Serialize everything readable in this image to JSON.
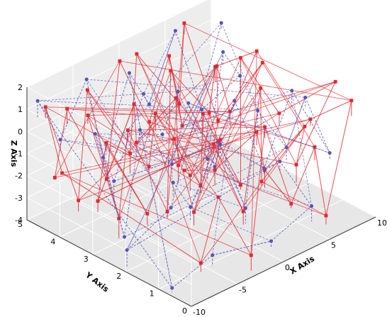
{
  "chart_data": {
    "type": "line",
    "title": "",
    "xlabel": "X Axis",
    "ylabel": "Y Axis",
    "zlabel": "Z Axis",
    "xlim": [
      -10,
      10
    ],
    "ylim": [
      0,
      5
    ],
    "zlim": [
      -4,
      2
    ],
    "x_ticks": [
      "-10",
      "-5",
      "0",
      "5",
      "10"
    ],
    "y_ticks": [
      "0",
      "1",
      "2",
      "3",
      "4",
      "5"
    ],
    "z_ticks": [
      "-4",
      "-3",
      "-2",
      "-1",
      "0",
      "1",
      "2"
    ],
    "grid": true,
    "legend": "none",
    "series": [
      {
        "color": "#e8262b",
        "marker": "square",
        "line_style": "solid",
        "points": [
          [
            -8.6,
            0.6,
            1.4
          ],
          [
            -6.2,
            1.1,
            0.3
          ],
          [
            -4.0,
            0.8,
            1.7
          ],
          [
            -2.1,
            1.5,
            -0.6
          ],
          [
            0.3,
            0.9,
            1.1
          ],
          [
            2.6,
            1.3,
            -1.4
          ],
          [
            4.8,
            0.7,
            0.6
          ],
          [
            7.1,
            1.6,
            -2.3
          ],
          [
            9.2,
            1.0,
            1.5
          ],
          [
            8.1,
            2.4,
            -0.8
          ],
          [
            5.7,
            2.9,
            1.8
          ],
          [
            3.2,
            2.2,
            -2.9
          ],
          [
            0.9,
            2.7,
            0.4
          ],
          [
            -1.5,
            2.1,
            -1.9
          ],
          [
            -3.9,
            2.8,
            1.3
          ],
          [
            -6.4,
            2.3,
            -0.2
          ],
          [
            -8.9,
            2.9,
            0.9
          ],
          [
            -7.3,
            3.6,
            -2.6
          ],
          [
            -4.8,
            3.2,
            1.6
          ],
          [
            -2.4,
            3.8,
            -1.1
          ],
          [
            0.1,
            3.3,
            0.8
          ],
          [
            2.5,
            3.9,
            -3.2
          ],
          [
            4.9,
            3.4,
            1.2
          ],
          [
            7.4,
            3.7,
            -1.6
          ],
          [
            9.5,
            3.3,
            0.5
          ],
          [
            8.6,
            4.4,
            -2.8
          ],
          [
            6.0,
            4.7,
            1.9
          ],
          [
            3.7,
            4.2,
            -0.9
          ],
          [
            1.2,
            4.8,
            1.4
          ],
          [
            -1.3,
            4.3,
            -2.2
          ],
          [
            -3.8,
            4.9,
            0.7
          ],
          [
            -6.2,
            4.5,
            -3.5
          ],
          [
            -8.7,
            4.8,
            1.0
          ],
          [
            -9.4,
            4.1,
            -1.3
          ],
          [
            -7.9,
            0.3,
            -2.7
          ],
          [
            -5.3,
            0.5,
            -0.4
          ],
          [
            -2.8,
            0.2,
            -3.3
          ],
          [
            -0.6,
            0.4,
            1.9
          ],
          [
            1.9,
            0.3,
            -2.0
          ],
          [
            4.1,
            0.2,
            0.2
          ],
          [
            6.4,
            0.5,
            -3.6
          ],
          [
            8.8,
            0.4,
            1.2
          ],
          [
            9.7,
            1.9,
            -1.0
          ],
          [
            6.9,
            2.6,
            -3.8
          ],
          [
            4.3,
            1.9,
            1.5
          ],
          [
            1.7,
            1.7,
            -3.4
          ],
          [
            -0.8,
            1.9,
            0.0
          ],
          [
            -3.3,
            1.8,
            -2.5
          ],
          [
            -5.8,
            1.7,
            1.4
          ],
          [
            -8.0,
            1.9,
            -1.7
          ],
          [
            -9.1,
            3.4,
            1.8
          ],
          [
            -6.8,
            3.1,
            -3.1
          ],
          [
            -4.4,
            3.5,
            0.1
          ],
          [
            -1.9,
            3.0,
            -3.7
          ],
          [
            0.6,
            3.6,
            1.7
          ],
          [
            3.0,
            3.1,
            -0.3
          ],
          [
            5.4,
            3.5,
            -2.4
          ],
          [
            7.8,
            3.0,
            1.6
          ],
          [
            9.0,
            4.6,
            -0.6
          ],
          [
            6.5,
            4.9,
            -3.0
          ],
          [
            4.0,
            4.6,
            0.9
          ],
          [
            1.5,
            4.5,
            -1.5
          ],
          [
            -1.0,
            4.7,
            1.6
          ],
          [
            -3.5,
            4.4,
            -3.0
          ],
          [
            -6.0,
            4.9,
            0.3
          ],
          [
            -8.4,
            4.6,
            -2.1
          ]
        ]
      },
      {
        "color": "#5555bb",
        "marker": "circle",
        "line_style": "dashed",
        "points": [
          [
            -7.7,
            1.2,
            0.2
          ],
          [
            -5.1,
            1.4,
            -1.6
          ],
          [
            -2.6,
            1.2,
            0.9
          ],
          [
            -0.2,
            1.1,
            -2.4
          ],
          [
            2.2,
            1.4,
            1.3
          ],
          [
            4.6,
            1.2,
            -0.7
          ],
          [
            7.0,
            1.3,
            1.0
          ],
          [
            9.3,
            1.2,
            -1.9
          ],
          [
            8.4,
            2.1,
            0.4
          ],
          [
            6.1,
            2.3,
            -2.8
          ],
          [
            3.6,
            2.5,
            0.6
          ],
          [
            1.1,
            2.4,
            -1.8
          ],
          [
            -1.4,
            2.5,
            1.5
          ],
          [
            -3.9,
            2.3,
            -0.6
          ],
          [
            -6.3,
            2.6,
            1.2
          ],
          [
            -8.7,
            2.4,
            -3.0
          ],
          [
            -7.6,
            3.6,
            0.5
          ],
          [
            -5.2,
            3.7,
            -2.2
          ],
          [
            -2.7,
            3.5,
            1.4
          ],
          [
            -0.3,
            3.6,
            -1.0
          ],
          [
            2.1,
            3.8,
            0.3
          ],
          [
            4.6,
            3.6,
            -3.1
          ],
          [
            7.0,
            3.8,
            1.1
          ],
          [
            9.2,
            3.9,
            -0.5
          ],
          [
            7.9,
            4.7,
            -2.4
          ],
          [
            5.4,
            4.8,
            1.6
          ],
          [
            2.9,
            4.9,
            -1.3
          ],
          [
            0.4,
            4.8,
            0.7
          ],
          [
            -2.1,
            4.9,
            -2.7
          ],
          [
            -4.6,
            4.7,
            1.5
          ],
          [
            -7.1,
            4.8,
            -0.8
          ],
          [
            -9.2,
            4.9,
            1.3
          ],
          [
            -9.6,
            0.7,
            -3.8
          ],
          [
            -4.5,
            0.9,
            -3.5
          ],
          [
            0.8,
            0.6,
            -3.7
          ],
          [
            5.9,
            0.8,
            -3.3
          ],
          [
            9.6,
            2.8,
            -3.6
          ],
          [
            -9.5,
            2.1,
            -3.2
          ],
          [
            -0.8,
            3.2,
            -3.9
          ],
          [
            8.6,
            4.3,
            1.7
          ]
        ]
      }
    ]
  }
}
